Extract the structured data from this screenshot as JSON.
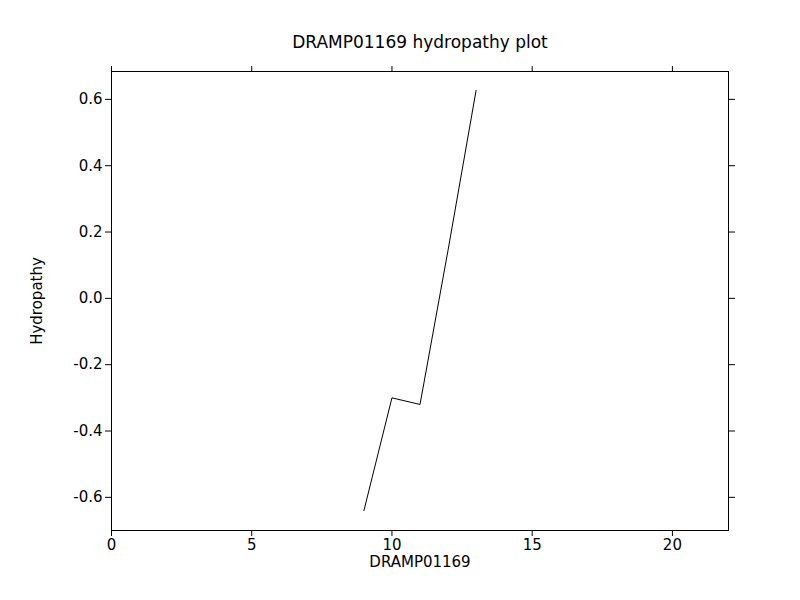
{
  "chart_data": {
    "type": "line",
    "title": "DRAMP01169 hydropathy plot",
    "x_label": "DRAMP01169",
    "y_label": "Hydropathy",
    "x": [
      9,
      10,
      11,
      12,
      13
    ],
    "values": [
      -0.64,
      -0.3,
      -0.32,
      0.145,
      0.627
    ],
    "color": "#000000",
    "xlim": [
      0,
      22
    ],
    "xticks": [
      0,
      5,
      10,
      15,
      20
    ],
    "ylim": [
      -0.7,
      0.684
    ],
    "yticks": [
      -0.6,
      -0.4,
      -0.2,
      {
        "value": 0,
        "label": "0.0"
      },
      0.2,
      0.4,
      0.6
    ],
    "grid": false
  }
}
